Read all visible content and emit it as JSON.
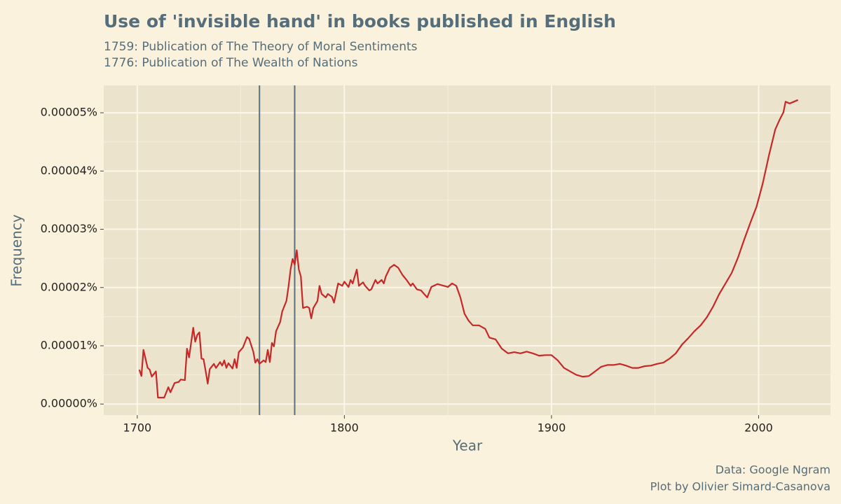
{
  "chart_data": {
    "type": "line",
    "title": "Use of 'invisible hand' in books published in English",
    "subtitle": [
      "1759: Publication of The Theory of Moral Sentiments",
      "1776: Publication of The Wealth of Nations"
    ],
    "x_label": "Year",
    "y_label": "Frequency",
    "caption": [
      "Data: Google Ngram",
      "Plot by Olivier Simard-Casanova"
    ],
    "x": [
      1701,
      1702,
      1703,
      1705,
      1706,
      1707,
      1709,
      1710,
      1713,
      1715,
      1716,
      1718,
      1720,
      1721,
      1723,
      1724,
      1725,
      1727,
      1728,
      1729,
      1730,
      1731,
      1732,
      1733,
      1734,
      1735,
      1737,
      1738,
      1740,
      1741,
      1742,
      1743,
      1744,
      1746,
      1747,
      1748,
      1749,
      1751,
      1753,
      1754,
      1756,
      1757,
      1758,
      1759,
      1761,
      1762,
      1763,
      1764,
      1765,
      1766,
      1767,
      1769,
      1770,
      1772,
      1773,
      1774,
      1775,
      1776,
      1777,
      1778,
      1779,
      1780,
      1782,
      1783,
      1784,
      1785,
      1787,
      1788,
      1789,
      1791,
      1792,
      1794,
      1795,
      1797,
      1799,
      1800,
      1802,
      1803,
      1804,
      1806,
      1807,
      1809,
      1810,
      1812,
      1813,
      1815,
      1816,
      1818,
      1819,
      1820,
      1822,
      1824,
      1826,
      1828,
      1830,
      1832,
      1833,
      1835,
      1837,
      1840,
      1842,
      1845,
      1848,
      1850,
      1852,
      1854,
      1856,
      1858,
      1860,
      1862,
      1865,
      1868,
      1870,
      1873,
      1876,
      1879,
      1882,
      1885,
      1888,
      1891,
      1894,
      1897,
      1900,
      1903,
      1906,
      1909,
      1912,
      1915,
      1918,
      1921,
      1924,
      1927,
      1930,
      1933,
      1936,
      1939,
      1942,
      1945,
      1948,
      1951,
      1954,
      1957,
      1960,
      1963,
      1966,
      1969,
      1972,
      1975,
      1978,
      1981,
      1984,
      1987,
      1990,
      1993,
      1996,
      1999,
      2002,
      2005,
      2008,
      2010,
      2012,
      2013,
      2015,
      2017,
      2019
    ],
    "series": [
      {
        "name": "invisible hand",
        "color": "#c62828",
        "values": [
          5.9e-06,
          4.8e-06,
          9.3e-06,
          6.2e-06,
          5.9e-06,
          4.7e-06,
          5.6e-06,
          1.1e-06,
          1.1e-06,
          2.9e-06,
          2e-06,
          3.6e-06,
          3.8e-06,
          4.2e-06,
          4.1e-06,
          9.5e-06,
          8e-06,
          1.31e-05,
          1.07e-05,
          1.19e-05,
          1.23e-05,
          7.8e-06,
          7.7e-06,
          5.7e-06,
          3.5e-06,
          6e-06,
          6.9e-06,
          6.2e-06,
          7.2e-06,
          6.6e-06,
          7.5e-06,
          6.2e-06,
          7e-06,
          6.1e-06,
          7.7e-06,
          6.2e-06,
          8.9e-06,
          9.7e-06,
          1.15e-05,
          1.12e-05,
          9e-06,
          7.1e-06,
          7.7e-06,
          6.9e-06,
          7.5e-06,
          7.2e-06,
          9.3e-06,
          7.2e-06,
          1.05e-05,
          9.9e-06,
          1.25e-05,
          1.41e-05,
          1.59e-05,
          1.77e-05,
          2.01e-05,
          2.31e-05,
          2.49e-05,
          2.39e-05,
          2.64e-05,
          2.31e-05,
          2.19e-05,
          1.65e-05,
          1.67e-05,
          1.65e-05,
          1.47e-05,
          1.65e-05,
          1.77e-05,
          2.03e-05,
          1.89e-05,
          1.83e-05,
          1.89e-05,
          1.84e-05,
          1.74e-05,
          2.07e-05,
          2.03e-05,
          2.1e-05,
          2.01e-05,
          2.13e-05,
          2.07e-05,
          2.31e-05,
          2.03e-05,
          2.09e-05,
          2.03e-05,
          1.95e-05,
          1.97e-05,
          2.13e-05,
          2.07e-05,
          2.13e-05,
          2.07e-05,
          2.19e-05,
          2.34e-05,
          2.39e-05,
          2.34e-05,
          2.22e-05,
          2.13e-05,
          2.03e-05,
          2.07e-05,
          1.97e-05,
          1.95e-05,
          1.83e-05,
          2.01e-05,
          2.06e-05,
          2.03e-05,
          2.01e-05,
          2.07e-05,
          2.03e-05,
          1.83e-05,
          1.55e-05,
          1.43e-05,
          1.35e-05,
          1.35e-05,
          1.29e-05,
          1.14e-05,
          1.11e-05,
          9.5e-06,
          8.7e-06,
          8.9e-06,
          8.7e-06,
          9e-06,
          8.7e-06,
          8.3e-06,
          8.4e-06,
          8.4e-06,
          7.5e-06,
          6.2e-06,
          5.6e-06,
          5e-06,
          4.7e-06,
          4.8e-06,
          5.6e-06,
          6.4e-06,
          6.7e-06,
          6.7e-06,
          6.9e-06,
          6.6e-06,
          6.2e-06,
          6.2e-06,
          6.5e-06,
          6.6e-06,
          6.9e-06,
          7.1e-06,
          7.8e-06,
          8.7e-06,
          1.02e-05,
          1.13e-05,
          1.25e-05,
          1.35e-05,
          1.49e-05,
          1.67e-05,
          1.89e-05,
          2.07e-05,
          2.25e-05,
          2.51e-05,
          2.82e-05,
          3.11e-05,
          3.39e-05,
          3.79e-05,
          4.27e-05,
          4.71e-05,
          4.87e-05,
          5.01e-05,
          5.19e-05,
          5.16e-05,
          5.19e-05,
          5.22e-05
        ]
      }
    ],
    "vlines": [
      1759,
      1776
    ],
    "vline_color": "#5c707c",
    "xlim": [
      1683.8,
      2034.7
    ],
    "xticks": [
      1700,
      1800,
      1900,
      2000
    ],
    "ylim": [
      -1.9e-06,
      5.47e-05
    ],
    "yticks": [
      {
        "value": 0,
        "label": "0.00000%"
      },
      {
        "value": 1e-05,
        "label": "0.00001%"
      },
      {
        "value": 2e-05,
        "label": "0.00002%"
      },
      {
        "value": 3e-05,
        "label": "0.00003%"
      },
      {
        "value": 4e-05,
        "label": "0.00004%"
      },
      {
        "value": 5e-05,
        "label": "0.00005%"
      }
    ],
    "grid": true
  }
}
